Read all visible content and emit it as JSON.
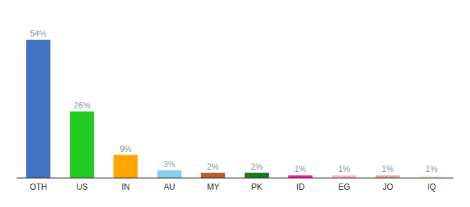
{
  "chart_data": {
    "type": "bar",
    "categories": [
      "OTH",
      "US",
      "IN",
      "AU",
      "MY",
      "PK",
      "ID",
      "EG",
      "JO",
      "IQ"
    ],
    "values": [
      54,
      26,
      9,
      3,
      2,
      2,
      1,
      1,
      1,
      1
    ],
    "value_labels": [
      "54%",
      "26%",
      "9%",
      "3%",
      "2%",
      "2%",
      "1%",
      "1%",
      "1%",
      "1%"
    ],
    "colors": [
      "#4472C4",
      "#22CC22",
      "#FFA500",
      "#87CEEB",
      "#B85C2C",
      "#1A7A1A",
      "#FF1493",
      "#FFB6C1",
      "#E8A898",
      "#F5F5DC"
    ],
    "ylim": [
      0,
      62
    ],
    "data_labels": true,
    "tick_labels": "x",
    "grid": false
  }
}
